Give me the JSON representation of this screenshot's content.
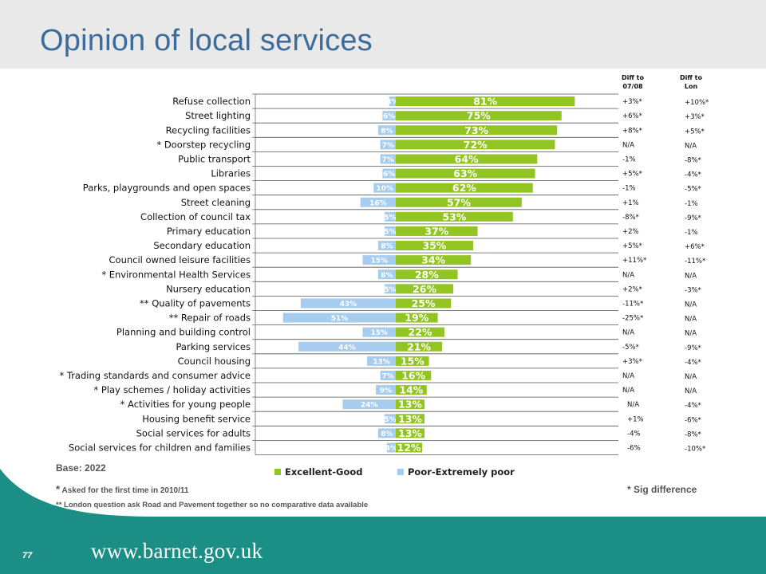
{
  "page": {
    "title": "Opinion of local services",
    "base_label": "Base:",
    "base_value": "2022",
    "footnote_first_time": "Asked for the first time in 2010/11",
    "footnote_london": "** London question ask Road and Pavement together so no comparative data available",
    "sig_note": "* Sig difference",
    "page_number": "77",
    "url": "www.barnet.gov.uk",
    "colors": {
      "header_bg": "#e9e9e9",
      "footer_teal": "#1b8f86",
      "title_blue": "#3d6b9c"
    }
  },
  "chart_data": {
    "type": "bar",
    "orientation": "horizontal-diverging",
    "categories": [
      "Refuse collection",
      "Street lighting",
      "Recycling facilities",
      "* Doorstep recycling",
      "Public transport",
      "Libraries",
      "Parks, playgrounds and open spaces",
      "Street cleaning",
      "Collection of council tax",
      "Primary education",
      "Secondary education",
      "Council owned leisure facilities",
      "* Environmental Health Services",
      "Nursery education",
      "** Quality of pavements",
      "** Repair of roads",
      "Planning and building control",
      "Parking services",
      "Council housing",
      "* Trading standards and consumer advice",
      "* Play schemes / holiday activities",
      "* Activities for young people",
      "Housing benefit service",
      "Social services for adults",
      "Social services for children and families"
    ],
    "series": [
      {
        "name": "Excellent-Good",
        "color": "#92c522",
        "values": [
          81,
          75,
          73,
          72,
          64,
          63,
          62,
          57,
          53,
          37,
          35,
          34,
          28,
          26,
          25,
          19,
          22,
          21,
          15,
          16,
          14,
          13,
          13,
          13,
          12
        ],
        "labels": [
          "81%",
          "75%",
          "73%",
          "72%",
          "64%",
          "63%",
          "62%",
          "57%",
          "53%",
          "37%",
          "35%",
          "34%",
          "28%",
          "26%",
          "25%",
          "19%",
          "22%",
          "21%",
          "15%",
          "16%",
          "14%",
          "13%",
          "13%",
          "13%",
          "12%"
        ]
      },
      {
        "name": "Poor-Extremely poor",
        "color": "#a6cdee",
        "values": [
          3,
          6,
          8,
          7,
          7,
          6,
          10,
          16,
          5,
          5,
          8,
          15,
          8,
          5,
          43,
          51,
          15,
          44,
          13,
          7,
          9,
          24,
          5,
          8,
          4
        ],
        "labels": [
          "3%",
          "6%",
          "8%",
          "7%",
          "7%",
          "6%",
          "10%",
          "16%",
          "5%",
          "5%",
          "8%",
          "15%",
          "8%",
          "5%",
          "43%",
          "51%",
          "15%",
          "44%",
          "13%",
          "7%",
          "9%",
          "24%",
          "5%",
          "8%",
          "4%"
        ]
      }
    ],
    "diff_columns": [
      {
        "header_line1": "Diff to",
        "header_line2": "07/08",
        "values": [
          "+3%*",
          "+6%*",
          "+8%*",
          "N/A",
          "-1%",
          "+5%*",
          "-1%",
          "+1%",
          "-8%*",
          "+2%",
          "+5%*",
          "+11%*",
          "N/A",
          "+2%*",
          "-11%*",
          "-25%*",
          "N/A",
          "-5%*",
          "+3%*",
          "N/A",
          "N/A",
          "N/A",
          "+1%",
          "-4%",
          "-6%"
        ]
      },
      {
        "header_line1": "Diff to",
        "header_line2": "Lon",
        "values": [
          "+10%*",
          "+3%*",
          "+5%*",
          "N/A",
          "-8%*",
          "-4%*",
          "-5%*",
          "-1%",
          "-9%*",
          "-1%",
          "+6%*",
          "-11%*",
          "N/A",
          "-3%*",
          "N/A",
          "N/A",
          "N/A",
          "-9%*",
          "-4%*",
          "N/A",
          "N/A",
          "-4%*",
          "-6%*",
          "-8%*",
          "-10%*"
        ]
      }
    ],
    "legend": {
      "placement": "bottom"
    },
    "xlim": [
      -55,
      85
    ]
  }
}
